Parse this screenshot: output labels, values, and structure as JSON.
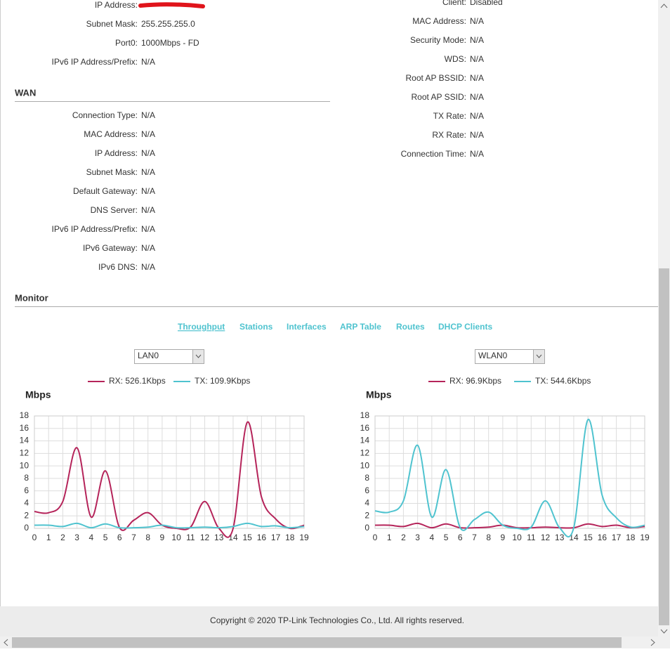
{
  "lan": {
    "rows": [
      {
        "label": "IP Address:"
      },
      {
        "label": "Subnet Mask:",
        "value": "255.255.255.0"
      },
      {
        "label": "Port0:",
        "value": "1000Mbps - FD"
      },
      {
        "label": "IPv6 IP Address/Prefix:",
        "value": "N/A"
      }
    ]
  },
  "wan": {
    "title": "WAN",
    "rows": [
      {
        "label": "Connection Type:",
        "value": "N/A"
      },
      {
        "label": "MAC Address:",
        "value": "N/A"
      },
      {
        "label": "IP Address:",
        "value": "N/A"
      },
      {
        "label": "Subnet Mask:",
        "value": "N/A"
      },
      {
        "label": "Default Gateway:",
        "value": "N/A"
      },
      {
        "label": "DNS Server:",
        "value": "N/A"
      },
      {
        "label": "IPv6 IP Address/Prefix:",
        "value": "N/A"
      },
      {
        "label": "IPv6 Gateway:",
        "value": "N/A"
      },
      {
        "label": "IPv6 DNS:",
        "value": "N/A"
      }
    ]
  },
  "wireless": {
    "rows": [
      {
        "label": "Client:",
        "value": "Disabled"
      },
      {
        "label": "MAC Address:",
        "value": "N/A"
      },
      {
        "label": "Security Mode:",
        "value": "N/A"
      },
      {
        "label": "WDS:",
        "value": "N/A"
      },
      {
        "label": "Root AP BSSID:",
        "value": "N/A"
      },
      {
        "label": "Root AP SSID:",
        "value": "N/A"
      },
      {
        "label": "TX Rate:",
        "value": "N/A"
      },
      {
        "label": "RX Rate:",
        "value": "N/A"
      },
      {
        "label": "Connection Time:",
        "value": "N/A"
      }
    ]
  },
  "monitor": {
    "title": "Monitor",
    "tabs": [
      "Throughput",
      "Stations",
      "Interfaces",
      "ARP Table",
      "Routes",
      "DHCP Clients"
    ],
    "selects": [
      "LAN0",
      "WLAN0"
    ]
  },
  "chart_data": [
    {
      "type": "line",
      "ylabel": "Mbps",
      "x": [
        0,
        1,
        2,
        3,
        4,
        5,
        6,
        7,
        8,
        9,
        10,
        11,
        12,
        13,
        14,
        15,
        16,
        17,
        18,
        19
      ],
      "xlim": [
        0,
        19
      ],
      "xticks": [
        0,
        1,
        2,
        3,
        4,
        5,
        6,
        7,
        8,
        9,
        10,
        11,
        12,
        13,
        14,
        15,
        16,
        17,
        18,
        19
      ],
      "ylim": [
        0,
        18
      ],
      "yticks": [
        0,
        2,
        4,
        6,
        8,
        10,
        12,
        14,
        16,
        18
      ],
      "grid": true,
      "series": [
        {
          "name": "RX: 526.1Kbps",
          "color": "#b5245a",
          "values": [
            2.7,
            2.5,
            4.3,
            12.9,
            1.8,
            9.2,
            0.1,
            1.3,
            2.5,
            0.5,
            0,
            0.2,
            4.3,
            0,
            0,
            17,
            5,
            1.5,
            0,
            0.5
          ]
        },
        {
          "name": "TX: 109.9Kbps",
          "color": "#4fc3cf",
          "values": [
            0.5,
            0.5,
            0.3,
            0.8,
            0.1,
            0.7,
            0.1,
            0.1,
            0.2,
            0.5,
            0.1,
            0.1,
            0.2,
            0.1,
            0.3,
            0.8,
            0.3,
            0.4,
            0.1,
            0.3
          ]
        }
      ]
    },
    {
      "type": "line",
      "ylabel": "Mbps",
      "x": [
        0,
        1,
        2,
        3,
        4,
        5,
        6,
        7,
        8,
        9,
        10,
        11,
        12,
        13,
        14,
        15,
        16,
        17,
        18,
        19
      ],
      "xlim": [
        0,
        19
      ],
      "xticks": [
        0,
        1,
        2,
        3,
        4,
        5,
        6,
        7,
        8,
        9,
        10,
        11,
        12,
        13,
        14,
        15,
        16,
        17,
        18,
        19
      ],
      "ylim": [
        0,
        18
      ],
      "yticks": [
        0,
        2,
        4,
        6,
        8,
        10,
        12,
        14,
        16,
        18
      ],
      "grid": true,
      "series": [
        {
          "name": "RX: 96.9Kbps",
          "color": "#b5245a",
          "values": [
            0.5,
            0.5,
            0.3,
            0.8,
            0.1,
            0.7,
            0.1,
            0.1,
            0.2,
            0.5,
            0.1,
            0.1,
            0.2,
            0.1,
            0.1,
            0.7,
            0.3,
            0.5,
            0.1,
            0.3
          ]
        },
        {
          "name": "TX: 544.6Kbps",
          "color": "#4fc3cf",
          "values": [
            2.8,
            2.6,
            4.4,
            13.3,
            1.8,
            9.4,
            0.1,
            1.4,
            2.6,
            0.5,
            0,
            0.2,
            4.4,
            0.1,
            0.1,
            17.4,
            5.3,
            1.7,
            0.2,
            0.5
          ]
        }
      ]
    }
  ],
  "footer": "Copyright © 2020 TP-Link Technologies Co., Ltd. All rights reserved."
}
